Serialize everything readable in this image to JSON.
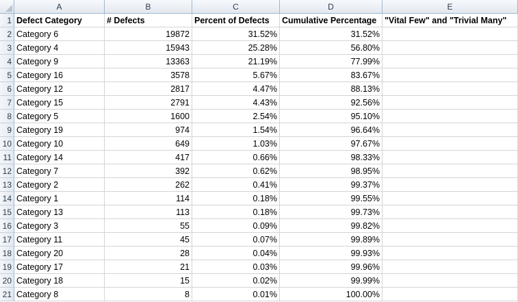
{
  "columns": [
    "A",
    "B",
    "C",
    "D",
    "E"
  ],
  "header_row": [
    "Defect Category",
    "# Defects",
    "Percent of Defects",
    "Cumulative Percentage",
    "\"Vital Few\" and \"Trivial Many\""
  ],
  "rows": [
    [
      "Category 6",
      "19872",
      "31.52%",
      "31.52%",
      ""
    ],
    [
      "Category 4",
      "15943",
      "25.28%",
      "56.80%",
      ""
    ],
    [
      "Category 9",
      "13363",
      "21.19%",
      "77.99%",
      ""
    ],
    [
      "Category 16",
      "3578",
      "5.67%",
      "83.67%",
      ""
    ],
    [
      "Category 12",
      "2817",
      "4.47%",
      "88.13%",
      ""
    ],
    [
      "Category 15",
      "2791",
      "4.43%",
      "92.56%",
      ""
    ],
    [
      "Category 5",
      "1600",
      "2.54%",
      "95.10%",
      ""
    ],
    [
      "Category 19",
      "974",
      "1.54%",
      "96.64%",
      ""
    ],
    [
      "Category 10",
      "649",
      "1.03%",
      "97.67%",
      ""
    ],
    [
      "Category 14",
      "417",
      "0.66%",
      "98.33%",
      ""
    ],
    [
      "Category 7",
      "392",
      "0.62%",
      "98.95%",
      ""
    ],
    [
      "Category 2",
      "262",
      "0.41%",
      "99.37%",
      ""
    ],
    [
      "Category 1",
      "114",
      "0.18%",
      "99.55%",
      ""
    ],
    [
      "Category 13",
      "113",
      "0.18%",
      "99.73%",
      ""
    ],
    [
      "Category 3",
      "55",
      "0.09%",
      "99.82%",
      ""
    ],
    [
      "Category 11",
      "45",
      "0.07%",
      "99.89%",
      ""
    ],
    [
      "Category 20",
      "28",
      "0.04%",
      "99.93%",
      ""
    ],
    [
      "Category 17",
      "21",
      "0.03%",
      "99.96%",
      ""
    ],
    [
      "Category 18",
      "15",
      "0.02%",
      "99.99%",
      ""
    ],
    [
      "Category 8",
      "8",
      "0.01%",
      "100.00%",
      ""
    ]
  ],
  "row_numbers": [
    "1",
    "2",
    "3",
    "4",
    "5",
    "6",
    "7",
    "8",
    "9",
    "10",
    "11",
    "12",
    "13",
    "14",
    "15",
    "16",
    "17",
    "18",
    "19",
    "20",
    "21"
  ]
}
